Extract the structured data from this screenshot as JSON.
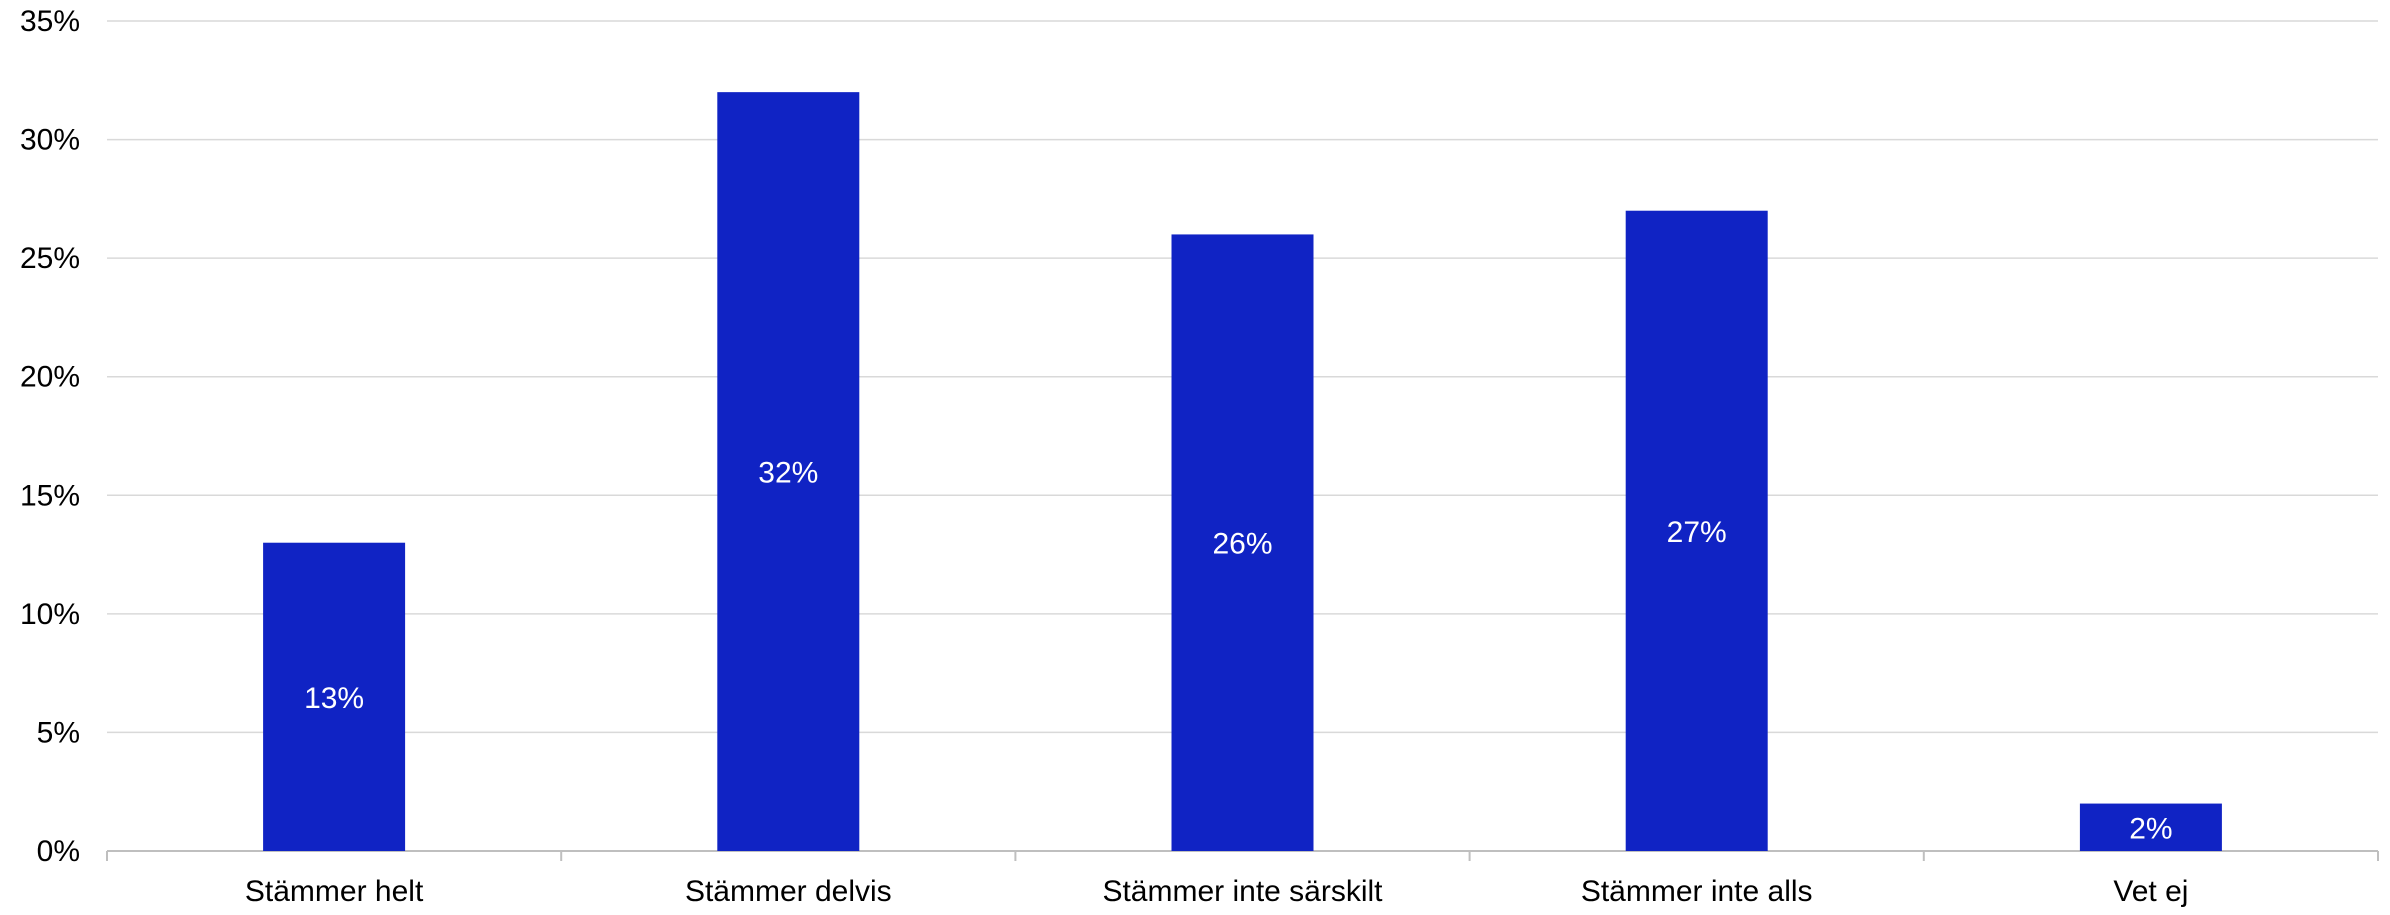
{
  "chart_data": {
    "type": "bar",
    "categories": [
      "Stämmer helt",
      "Stämmer delvis",
      "Stämmer inte särskilt",
      "Stämmer inte alls",
      "Vet ej"
    ],
    "values": [
      13,
      32,
      26,
      27,
      2
    ],
    "value_labels": [
      "13%",
      "32%",
      "26%",
      "27%",
      "2%"
    ],
    "yticks": [
      "0%",
      "5%",
      "10%",
      "15%",
      "20%",
      "25%",
      "30%",
      "35%"
    ],
    "ylim": [
      0,
      35
    ],
    "grid": true,
    "legend": "none",
    "title": "",
    "xlabel": "",
    "ylabel": ""
  },
  "colors": {
    "bar": "#1023c4",
    "grid": "#d9d9d9",
    "axis": "#bfbfbf",
    "text": "#000000",
    "value_label": "#ffffff"
  }
}
